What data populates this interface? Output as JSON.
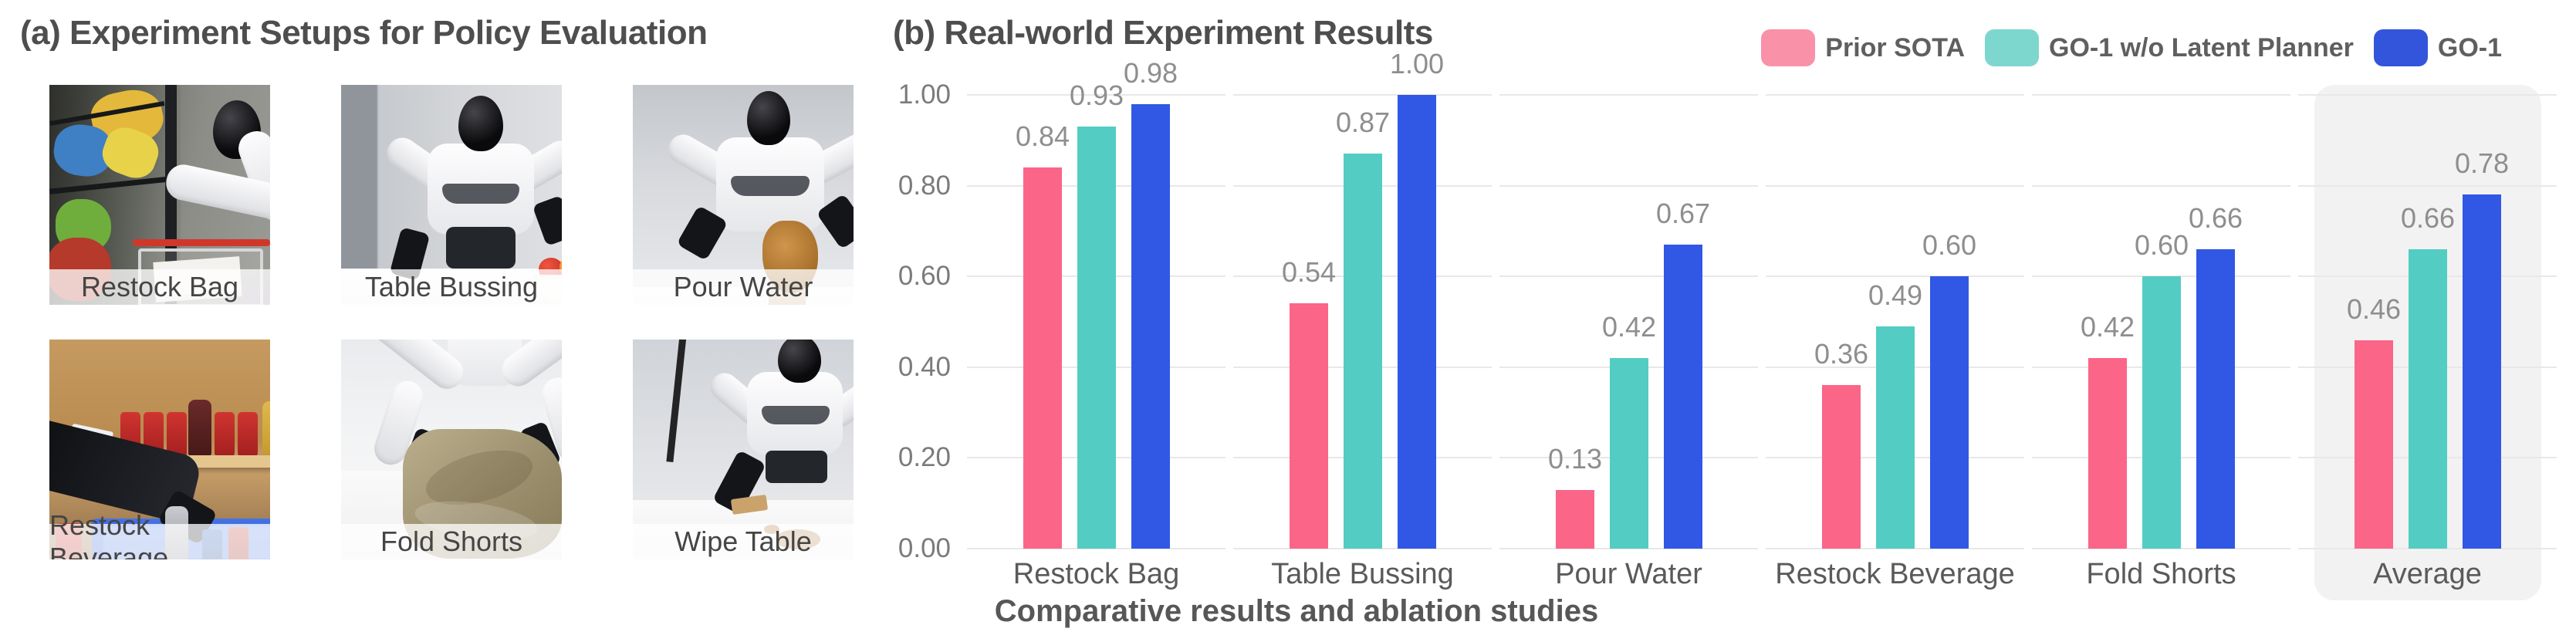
{
  "figure": {
    "panel_a": {
      "title": "(a) Experiment Setups for Policy Evaluation",
      "photos": [
        {
          "label": "Restock Bag"
        },
        {
          "label": "Table Bussing"
        },
        {
          "label": "Pour Water"
        },
        {
          "label": "Restock Beverage"
        },
        {
          "label": "Fold Shorts"
        },
        {
          "label": "Wipe Table"
        }
      ]
    },
    "panel_b": {
      "title": "(b) Real-world Experiment Results",
      "caption": "Comparative results and ablation studies"
    }
  },
  "legend": {
    "items": [
      {
        "label": "Prior SOTA",
        "swatch_color": "#F991A9"
      },
      {
        "label": "GO-1 w/o Latent Planner",
        "swatch_color": "#7DD7CE"
      },
      {
        "label": "GO-1",
        "swatch_color": "#3355DC"
      }
    ]
  },
  "chart_data": {
    "type": "bar",
    "title": "(b) Real-world Experiment Results",
    "categories": [
      "Restock Bag",
      "Table Bussing",
      "Pour Water",
      "Restock Beverage",
      "Fold Shorts",
      "Average"
    ],
    "series": [
      {
        "name": "Prior SOTA",
        "color": "#FB6588",
        "values": [
          0.84,
          0.54,
          0.13,
          0.36,
          0.42,
          0.46
        ]
      },
      {
        "name": "GO-1 w/o Latent Planner",
        "color": "#53CDC3",
        "values": [
          0.93,
          0.87,
          0.42,
          0.49,
          0.6,
          0.66
        ]
      },
      {
        "name": "GO-1",
        "color": "#3058E5",
        "values": [
          0.98,
          1.0,
          0.67,
          0.6,
          0.66,
          0.78
        ]
      }
    ],
    "y_ticks": [
      "0.00",
      "0.20",
      "0.40",
      "0.60",
      "0.80",
      "1.00"
    ],
    "ylim": [
      0,
      1.0
    ],
    "grid": true,
    "grid_color": "#E8E8E8",
    "legend_position": "top-right",
    "highlight_category": "Average",
    "highlight_color": "#F2F2F3",
    "value_labels_shown": true,
    "xlabel": "",
    "ylabel": ""
  }
}
